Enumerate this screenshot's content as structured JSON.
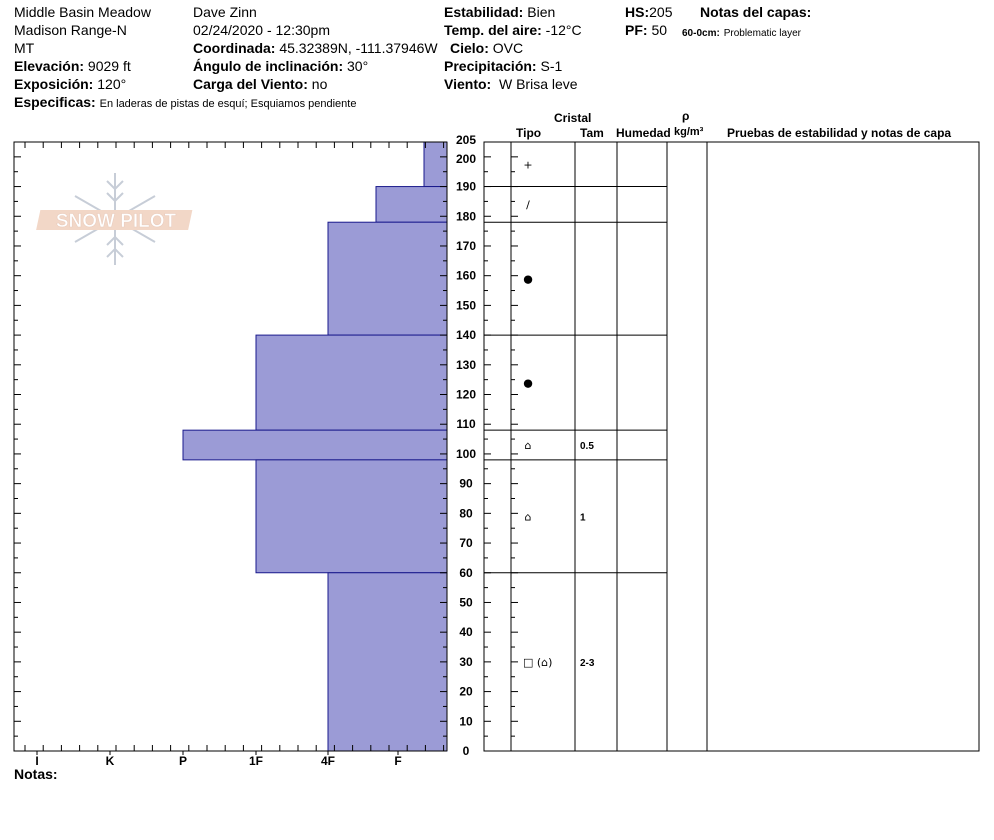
{
  "header": {
    "location": "Middle Basin Meadow",
    "range": "Madison Range-N",
    "state": "MT",
    "observer": "Dave Zinn",
    "datetime": "02/24/2020 - 12:30pm",
    "elevation_label": "Elevación:",
    "elevation_value": "9029 ft",
    "aspect_label": "Exposición:",
    "aspect_value": "120°",
    "specifics_label": "Especificas:",
    "specifics_value": "En laderas de pistas de esquí; Esquiamos pendiente",
    "coord_label": "Coordinada:",
    "coord_value": "45.32389N, -111.37946W",
    "slope_label": "Ángulo de inclinación:",
    "slope_value": "30°",
    "windload_label": "Carga del Viento:",
    "windload_value": "no",
    "stability_label": "Estabilidad:",
    "stability_value": "Bien",
    "airtemp_label": "Temp. del aire:",
    "airtemp_value": "-12°C",
    "sky_label": "Cielo:",
    "sky_value": "OVC",
    "precip_label": "Precipitación:",
    "precip_value": "S-1",
    "wind_label": "Viento:",
    "wind_value": "W Brisa leve",
    "hs_label": "HS:",
    "hs_value": "205",
    "pf_label": "PF:",
    "pf_value": "50",
    "layer_notes_label": "Notas del capas:",
    "layer_note_range": "60-0cm:",
    "layer_note_text": "Problematic layer"
  },
  "watermark_text": "SNOW PILOT",
  "columns": {
    "cristal": "Cristal",
    "tipo": "Tipo",
    "tam": "Tam",
    "humedad": "Humedad",
    "rho": "ρ",
    "density_unit": "kg/m³",
    "tests": "Pruebas de estabilidad y notas de capa"
  },
  "notes_label": "Notas:",
  "colors": {
    "layer_fill": "#9b9bd6",
    "layer_stroke": "#1a1a8c"
  },
  "chart_data": {
    "type": "bar",
    "orientation": "horizontal",
    "y_range": [
      0,
      205
    ],
    "y_ticks": [
      0,
      10,
      20,
      30,
      40,
      50,
      60,
      70,
      80,
      90,
      100,
      110,
      120,
      130,
      140,
      150,
      160,
      170,
      180,
      190,
      200,
      205
    ],
    "hardness_categories": [
      "I",
      "K",
      "P",
      "1F",
      "4F",
      "F"
    ],
    "layers": [
      {
        "top": 205,
        "bottom": 190,
        "hardness": "F+",
        "crystal": "+",
        "size": ""
      },
      {
        "top": 190,
        "bottom": 178,
        "hardness": "4F+",
        "crystal": "/",
        "size": ""
      },
      {
        "top": 178,
        "bottom": 140,
        "hardness": "4F",
        "crystal": "●",
        "size": ""
      },
      {
        "top": 140,
        "bottom": 108,
        "hardness": "1F",
        "crystal": "●",
        "size": ""
      },
      {
        "top": 108,
        "bottom": 98,
        "hardness": "P",
        "crystal": "⌂",
        "size": "0.5"
      },
      {
        "top": 98,
        "bottom": 60,
        "hardness": "1F",
        "crystal": "⌂",
        "size": "1"
      },
      {
        "top": 60,
        "bottom": 0,
        "hardness": "4F",
        "crystal": "□ (⌂)",
        "size": "2-3"
      }
    ]
  }
}
